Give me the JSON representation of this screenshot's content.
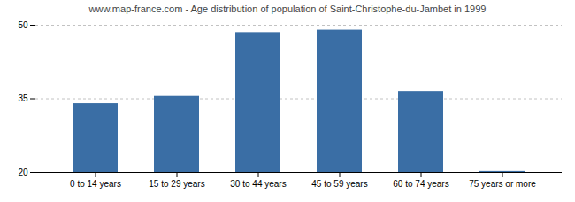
{
  "chart_data": {
    "type": "bar",
    "title": "www.map-france.com - Age distribution of population of Saint-Christophe-du-Jambet in 1999",
    "categories": [
      "0 to 14 years",
      "15 to 29 years",
      "30 to 44 years",
      "45 to 59 years",
      "60 to 74 years",
      "75 years or more"
    ],
    "values": [
      34.0,
      35.5,
      48.5,
      49.0,
      36.5,
      20.2
    ],
    "color": "#3a6ea5",
    "ylim": [
      20,
      50
    ],
    "yticks": [
      20,
      35,
      50
    ],
    "grid": true
  }
}
